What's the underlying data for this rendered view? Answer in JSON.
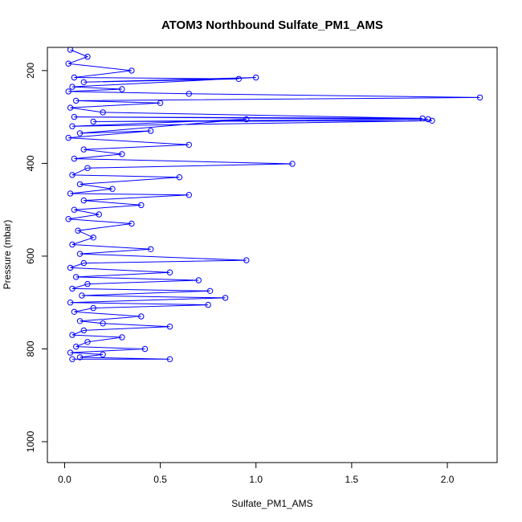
{
  "chart_data": {
    "type": "scatter",
    "title": "ATOM3 Northbound Sulfate_PM1_AMS",
    "xlabel": "Sulfate_PM1_AMS",
    "ylabel": "Pressure (mbar)",
    "xlim": [
      -0.09,
      2.26
    ],
    "ylim": [
      1045,
      150
    ],
    "y_reversed": true,
    "x_ticks": [
      "0.0",
      "0.5",
      "1.0",
      "1.5",
      "2.0"
    ],
    "y_ticks": [
      "200",
      "400",
      "600",
      "800",
      "1000"
    ],
    "grid": false,
    "legend": "none",
    "series_color": "#0000ff",
    "series": [
      {
        "points": [
          {
            "x": 0.03,
            "y": 155
          },
          {
            "x": 0.12,
            "y": 170
          },
          {
            "x": 0.02,
            "y": 185
          },
          {
            "x": 0.35,
            "y": 200
          },
          {
            "x": 0.05,
            "y": 215
          },
          {
            "x": 0.91,
            "y": 218
          },
          {
            "x": 0.1,
            "y": 225
          },
          {
            "x": 1.0,
            "y": 215
          },
          {
            "x": 0.04,
            "y": 235
          },
          {
            "x": 0.3,
            "y": 240
          },
          {
            "x": 0.02,
            "y": 245
          },
          {
            "x": 0.65,
            "y": 250
          },
          {
            "x": 2.17,
            "y": 258
          },
          {
            "x": 0.06,
            "y": 265
          },
          {
            "x": 0.5,
            "y": 270
          },
          {
            "x": 0.03,
            "y": 280
          },
          {
            "x": 0.2,
            "y": 290
          },
          {
            "x": 1.87,
            "y": 303
          },
          {
            "x": 0.05,
            "y": 300
          },
          {
            "x": 1.9,
            "y": 305
          },
          {
            "x": 0.15,
            "y": 310
          },
          {
            "x": 1.92,
            "y": 308
          },
          {
            "x": 0.04,
            "y": 320
          },
          {
            "x": 0.95,
            "y": 305
          },
          {
            "x": 0.08,
            "y": 335
          },
          {
            "x": 0.45,
            "y": 330
          },
          {
            "x": 0.02,
            "y": 345
          },
          {
            "x": 0.65,
            "y": 360
          },
          {
            "x": 0.1,
            "y": 370
          },
          {
            "x": 0.3,
            "y": 380
          },
          {
            "x": 0.05,
            "y": 390
          },
          {
            "x": 1.19,
            "y": 401
          },
          {
            "x": 0.12,
            "y": 410
          },
          {
            "x": 0.04,
            "y": 425
          },
          {
            "x": 0.6,
            "y": 430
          },
          {
            "x": 0.08,
            "y": 445
          },
          {
            "x": 0.25,
            "y": 455
          },
          {
            "x": 0.03,
            "y": 465
          },
          {
            "x": 0.65,
            "y": 468
          },
          {
            "x": 0.1,
            "y": 480
          },
          {
            "x": 0.4,
            "y": 490
          },
          {
            "x": 0.05,
            "y": 500
          },
          {
            "x": 0.18,
            "y": 510
          },
          {
            "x": 0.02,
            "y": 520
          },
          {
            "x": 0.35,
            "y": 530
          },
          {
            "x": 0.07,
            "y": 545
          },
          {
            "x": 0.15,
            "y": 560
          },
          {
            "x": 0.04,
            "y": 575
          },
          {
            "x": 0.45,
            "y": 585
          },
          {
            "x": 0.08,
            "y": 595
          },
          {
            "x": 0.95,
            "y": 609
          },
          {
            "x": 0.1,
            "y": 615
          },
          {
            "x": 0.03,
            "y": 625
          },
          {
            "x": 0.55,
            "y": 635
          },
          {
            "x": 0.06,
            "y": 645
          },
          {
            "x": 0.7,
            "y": 652
          },
          {
            "x": 0.12,
            "y": 660
          },
          {
            "x": 0.04,
            "y": 670
          },
          {
            "x": 0.76,
            "y": 675
          },
          {
            "x": 0.09,
            "y": 685
          },
          {
            "x": 0.84,
            "y": 690
          },
          {
            "x": 0.03,
            "y": 700
          },
          {
            "x": 0.75,
            "y": 705
          },
          {
            "x": 0.15,
            "y": 712
          },
          {
            "x": 0.05,
            "y": 720
          },
          {
            "x": 0.4,
            "y": 730
          },
          {
            "x": 0.08,
            "y": 740
          },
          {
            "x": 0.2,
            "y": 745
          },
          {
            "x": 0.55,
            "y": 752
          },
          {
            "x": 0.1,
            "y": 760
          },
          {
            "x": 0.04,
            "y": 770
          },
          {
            "x": 0.3,
            "y": 775
          },
          {
            "x": 0.12,
            "y": 785
          },
          {
            "x": 0.06,
            "y": 795
          },
          {
            "x": 0.42,
            "y": 800
          },
          {
            "x": 0.03,
            "y": 808
          },
          {
            "x": 0.2,
            "y": 812
          },
          {
            "x": 0.08,
            "y": 818
          },
          {
            "x": 0.55,
            "y": 822
          },
          {
            "x": 0.04,
            "y": 822
          }
        ]
      }
    ]
  }
}
